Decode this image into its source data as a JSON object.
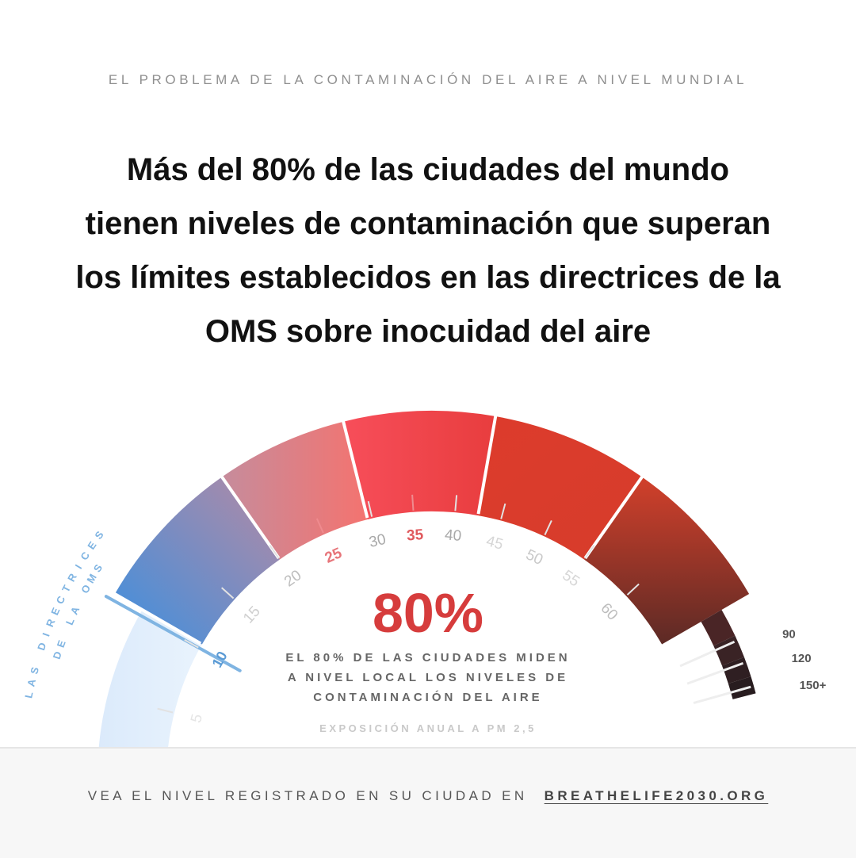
{
  "header": {
    "kicker": "EL PROBLEMA DE LA CONTAMINACIÓN DEL AIRE A NIVEL MUNDIAL",
    "headline": [
      "Más del 80% de las ciudades del mundo",
      "tienen niveles de contaminación que superan",
      "los límites establecidos en las directrices de la",
      "OMS sobre inocuidad del aire"
    ]
  },
  "chart_data": {
    "type": "gauge",
    "quantity": "EXPOSICIÓN ANUAL A PM 2,5",
    "ticks": [
      "5",
      "10",
      "15",
      "20",
      "25",
      "30",
      "35",
      "40",
      "45",
      "50",
      "55",
      "60",
      "90",
      "120",
      "150+"
    ],
    "highlight_ticks": [
      "25",
      "35"
    ],
    "guideline": {
      "label_line1": "LAS DIRECTRICES",
      "label_line2": "DE LA OMS",
      "value": 10
    },
    "big_value": "80%",
    "description": [
      "EL 80% DE LAS CIUDADES MIDEN",
      "A NIVEL LOCAL LOS NIVELES DE",
      "CONTAMINACIÓN DEL AIRE"
    ],
    "subtitle": "EXPOSICIÓN ANUAL A PM 2,5",
    "colors": {
      "clean": "#dbeafb",
      "blue": "#4492dc",
      "pink": "#f07a7a",
      "red": "#f2454f",
      "deep_red": "#d63a2b",
      "darkest": "#2d1f22",
      "accent_text": "#d63c3c",
      "guideline": "#7fb4e2"
    }
  },
  "footer": {
    "text": "VEA EL NIVEL REGISTRADO EN SU CIUDAD EN",
    "link": "BREATHELIFE2030.ORG"
  }
}
